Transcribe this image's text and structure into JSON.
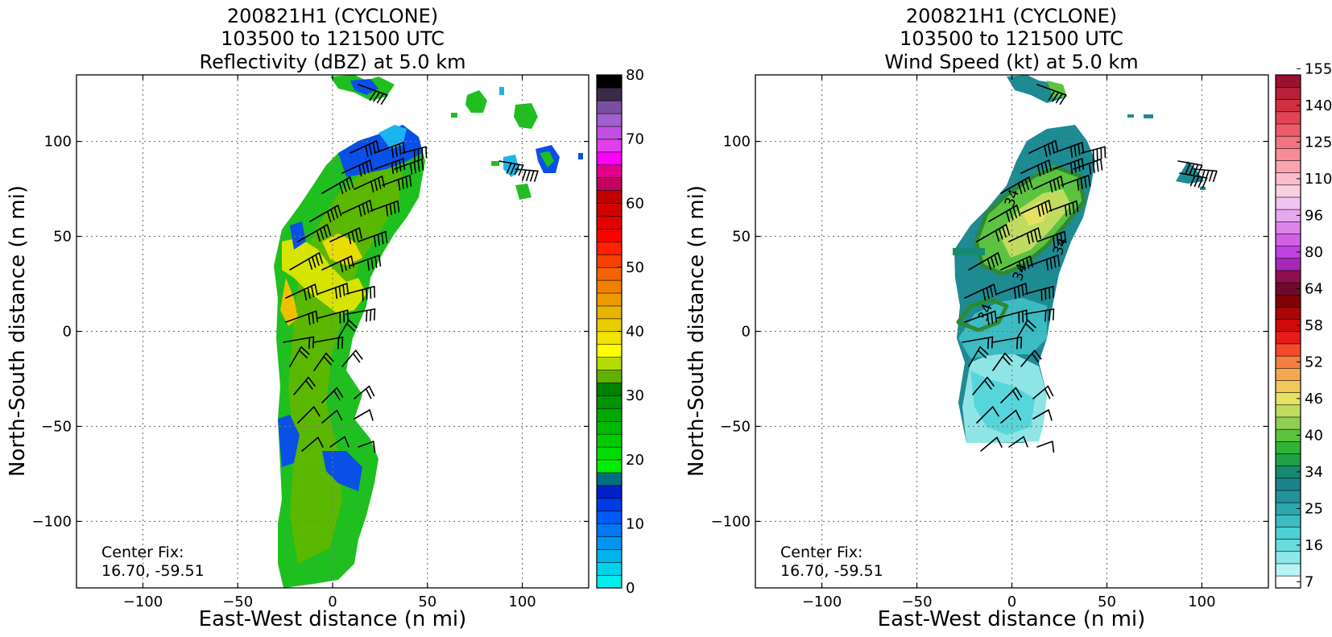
{
  "chart_data": [
    {
      "type": "heatmap",
      "title_lines": [
        "200821H1 (CYCLONE)",
        "103500 to 121500 UTC",
        "Reflectivity (dBZ) at 5.0 km"
      ],
      "xlabel": "East-West distance (n mi)",
      "ylabel": "North-South distance (n mi)",
      "xlim": [
        -135,
        135
      ],
      "ylim": [
        -135,
        135
      ],
      "xticks": [
        "-100",
        "-50",
        "0",
        "50",
        "100"
      ],
      "yticks": [
        "-100",
        "-50",
        "0",
        "50",
        "100"
      ],
      "grid": true,
      "annotation": [
        "Center Fix:",
        "16.70, -59.51"
      ],
      "colorbar": {
        "min": 0,
        "max": 80,
        "tick_labels": [
          "0",
          "10",
          "20",
          "30",
          "40",
          "50",
          "60",
          "70",
          "80"
        ],
        "colors": [
          "#00eeee",
          "#00d2ee",
          "#00b4ee",
          "#0096f0",
          "#0078f2",
          "#005af4",
          "#003ce4",
          "#0020c8",
          "#007080",
          "#00ee00",
          "#00dc00",
          "#00cc00",
          "#00bb00",
          "#00a800",
          "#009400",
          "#008000",
          "#60b000",
          "#b4dc00",
          "#ffff00",
          "#f0e400",
          "#e8cc00",
          "#e8b400",
          "#ec9c00",
          "#f08000",
          "#f46400",
          "#f84000",
          "#ff2000",
          "#ff0000",
          "#e40000",
          "#d00000",
          "#c00000",
          "#c40060",
          "#e0008c",
          "#ff00ff",
          "#e040e8",
          "#c050e0",
          "#a060d0",
          "#7a4fa0",
          "#3a2a4a",
          "#000000"
        ]
      },
      "wind_barbs": true
    },
    {
      "type": "heatmap",
      "title_lines": [
        "200821H1 (CYCLONE)",
        "103500 to 121500 UTC",
        "Wind Speed (kt) at 5.0 km"
      ],
      "xlabel": "East-West distance (n mi)",
      "ylabel": "North-South distance (n mi)",
      "xlim": [
        -135,
        135
      ],
      "ylim": [
        -135,
        135
      ],
      "xticks": [
        "-100",
        "-50",
        "0",
        "50",
        "100"
      ],
      "yticks": [
        "-100",
        "-50",
        "0",
        "50",
        "100"
      ],
      "grid": true,
      "annotation": [
        "Center Fix:",
        "16.70, -59.51"
      ],
      "contour_labels": [
        "34",
        "34",
        "34",
        "34"
      ],
      "colorbar": {
        "tick_labels": [
          "7",
          "16",
          "25",
          "34",
          "40",
          "46",
          "52",
          "58",
          "64",
          "80",
          "96",
          "110",
          "125",
          "140",
          "155"
        ],
        "colors": [
          "#ffffff",
          "#b8f4f4",
          "#8ee8ea",
          "#68dcdf",
          "#4ecfd3",
          "#3cbcc2",
          "#2ca7ae",
          "#23929a",
          "#1d838a",
          "#168a70",
          "#20a046",
          "#2fb438",
          "#5cc340",
          "#8fd052",
          "#bfdc60",
          "#e6e264",
          "#f2c85a",
          "#f4a84e",
          "#f67e3e",
          "#f44a2c",
          "#ea1a1a",
          "#d00a0a",
          "#a80606",
          "#7e0404",
          "#6e0a2a",
          "#8c1050",
          "#a628b4",
          "#c040e0",
          "#d260e6",
          "#dc84ea",
          "#e6a8ee",
          "#f0c4f0",
          "#f8d0e0",
          "#fbbccc",
          "#f9a4b0",
          "#f68c98",
          "#f27480",
          "#ec5c6a",
          "#e24454",
          "#d03040",
          "#b82038",
          "#9c1030"
        ]
      },
      "wind_barbs": true
    }
  ]
}
